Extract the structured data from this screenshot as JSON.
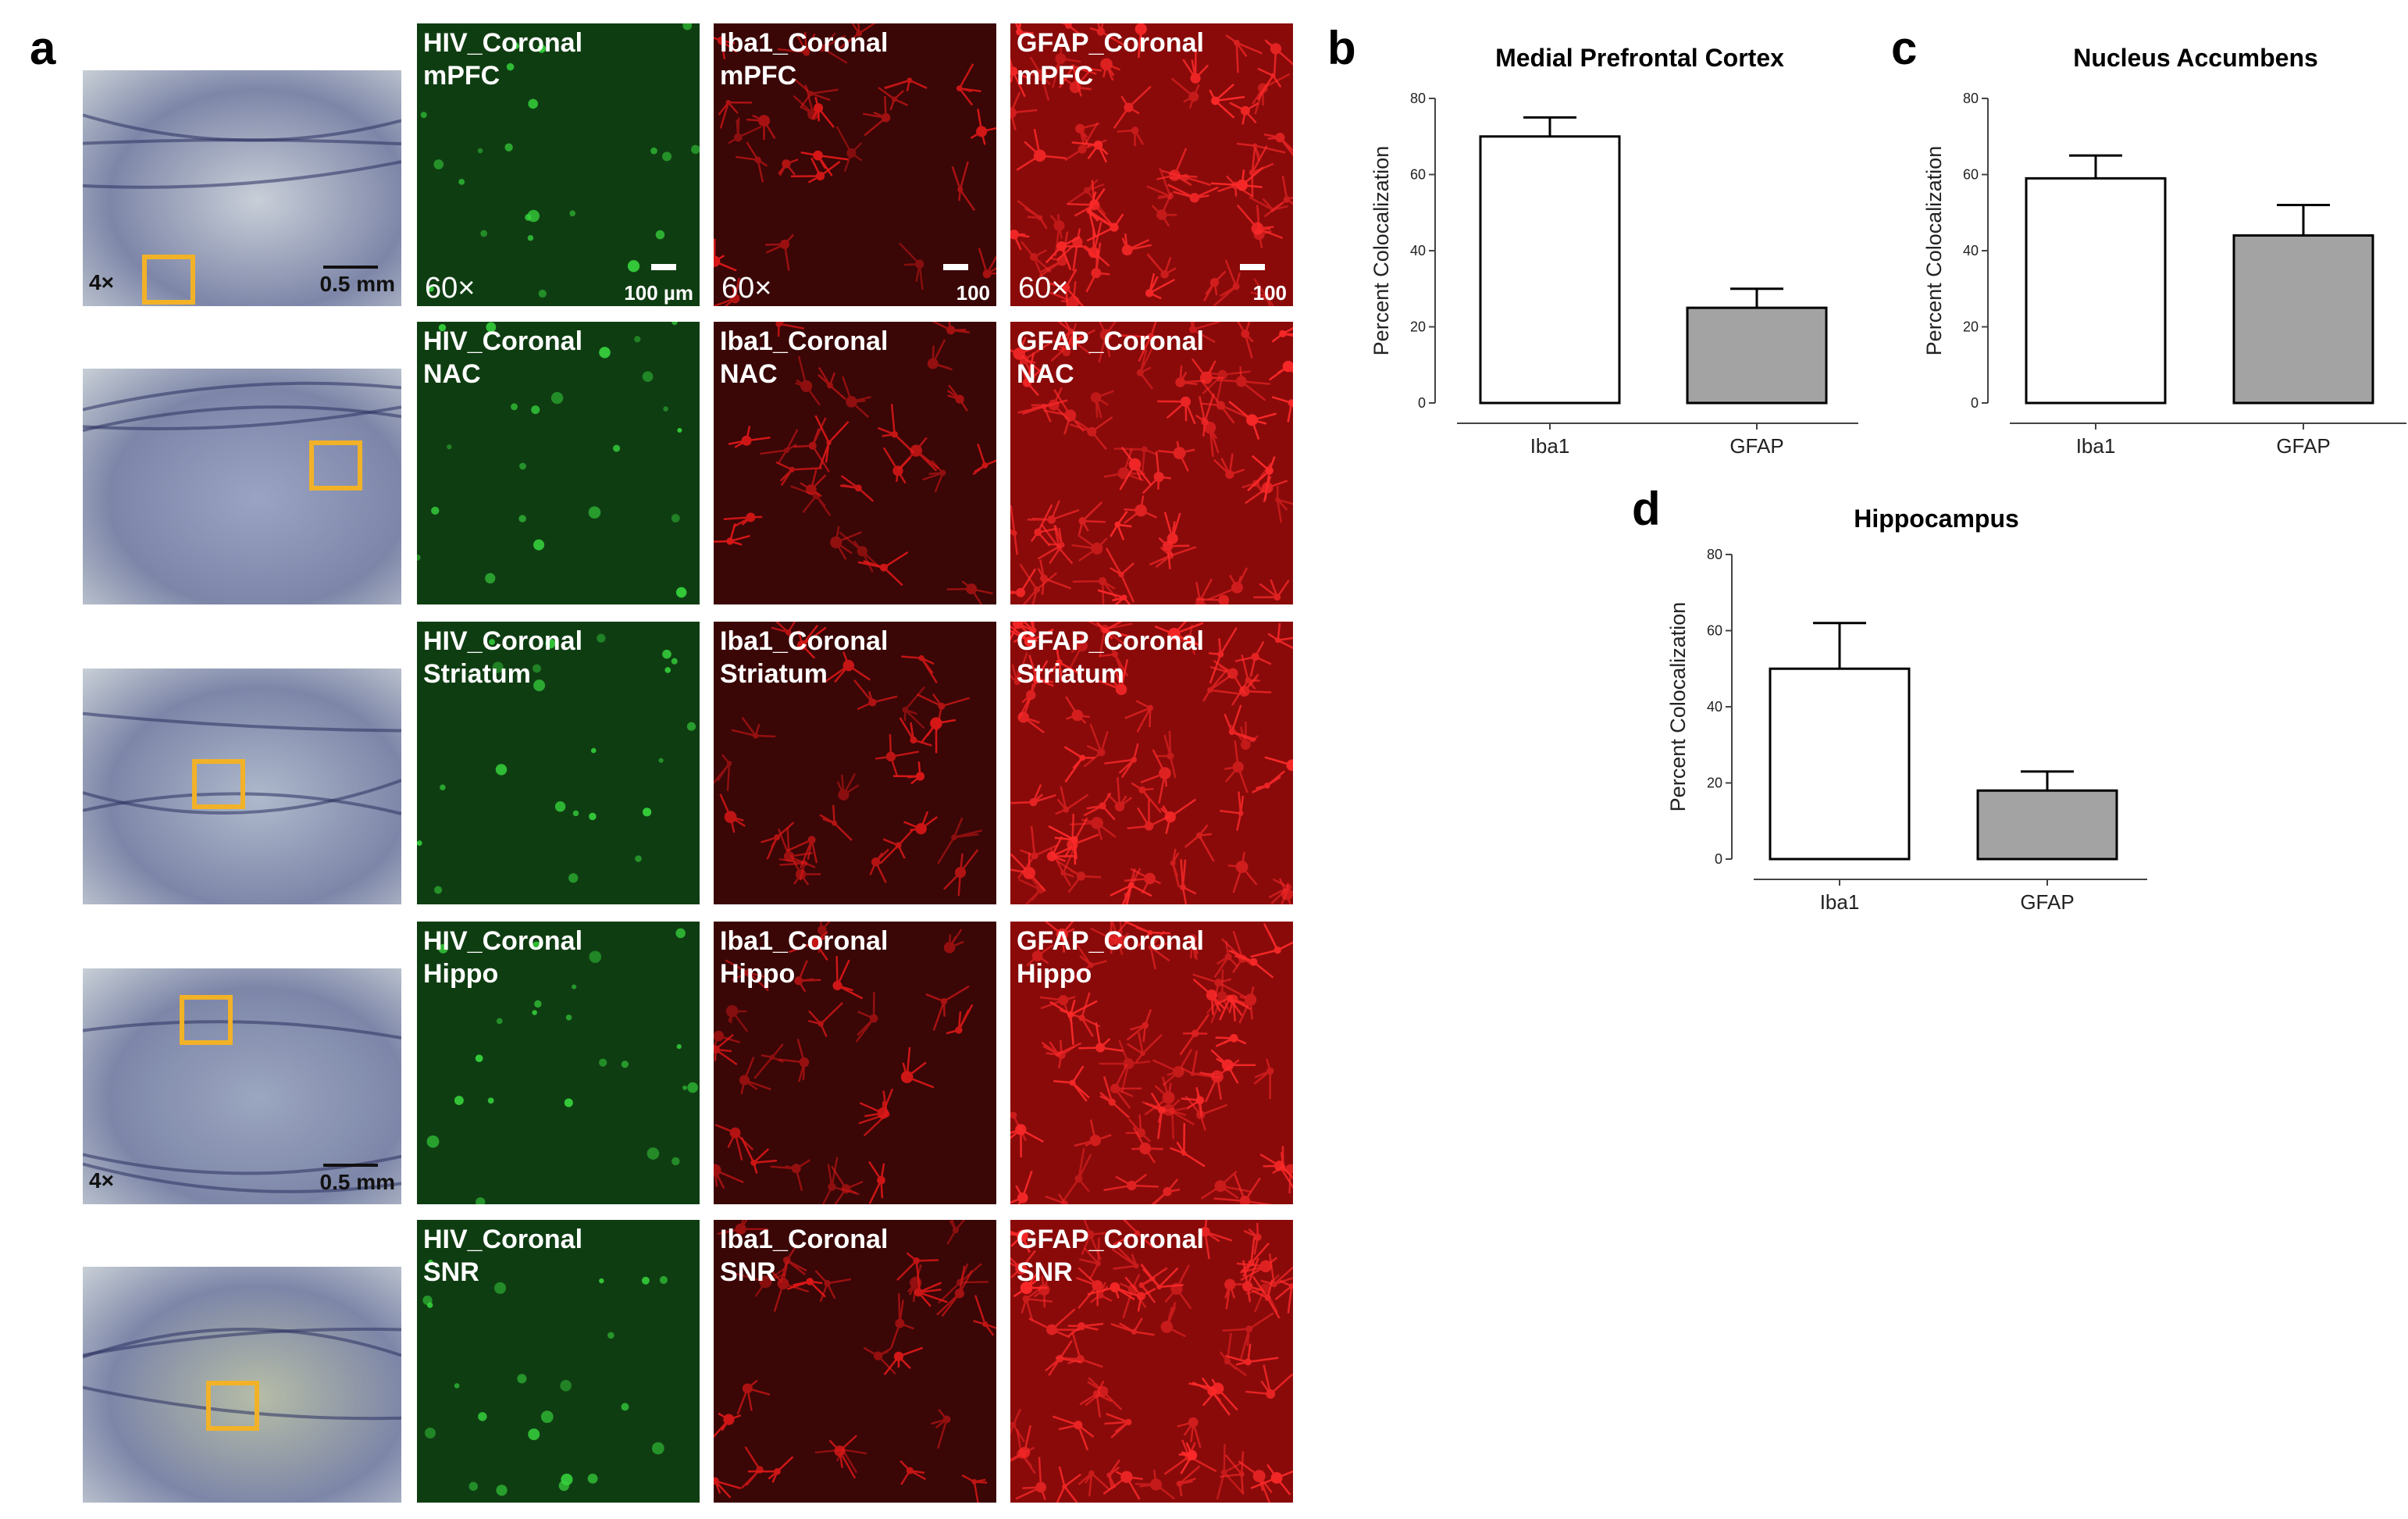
{
  "figure": {
    "panel_letters": {
      "a": "a",
      "b": "b",
      "c": "c",
      "d": "d"
    }
  },
  "histology": {
    "rows": [
      {
        "mag": "4×",
        "scale": "0.5 mm",
        "tint": "#c9cfd8"
      },
      {
        "mag": "",
        "scale": "",
        "tint": "#9aa3c4"
      },
      {
        "mag": "",
        "scale": "",
        "tint": "#aeb9cc"
      },
      {
        "mag": "4×",
        "scale": "0.5 mm",
        "tint": "#9ba6c0"
      },
      {
        "mag": "",
        "scale": "",
        "tint": "#b6bda7"
      }
    ],
    "box_color": "#f2b227"
  },
  "micrographs": {
    "rows": [
      {
        "region": "mPFC",
        "hiv": {
          "label1": "HIV_Coronal",
          "label2": "mPFC",
          "mag": "60×",
          "scale": "100 µm"
        },
        "iba": {
          "label1": "Iba1_Coronal",
          "label2": "mPFC",
          "mag": "60×",
          "scale": "100"
        },
        "gfap": {
          "label1": "GFAP_Coronal",
          "label2": "mPFC",
          "mag": "60×",
          "scale": "100"
        }
      },
      {
        "region": "NAC",
        "hiv": {
          "label1": "HIV_Coronal",
          "label2": "NAC",
          "mag": "",
          "scale": ""
        },
        "iba": {
          "label1": "Iba1_Coronal",
          "label2": "NAC",
          "mag": "",
          "scale": ""
        },
        "gfap": {
          "label1": "GFAP_Coronal",
          "label2": "NAC",
          "mag": "",
          "scale": ""
        }
      },
      {
        "region": "Striatum",
        "hiv": {
          "label1": "HIV_Coronal",
          "label2": "Striatum",
          "mag": "",
          "scale": ""
        },
        "iba": {
          "label1": "Iba1_Coronal",
          "label2": "Striatum",
          "mag": "",
          "scale": ""
        },
        "gfap": {
          "label1": "GFAP_Coronal",
          "label2": "Striatum",
          "mag": "",
          "scale": ""
        }
      },
      {
        "region": "Hippo",
        "hiv": {
          "label1": "HIV_Coronal",
          "label2": "Hippo",
          "mag": "",
          "scale": ""
        },
        "iba": {
          "label1": "Iba1_Coronal",
          "label2": "Hippo",
          "mag": "",
          "scale": ""
        },
        "gfap": {
          "label1": "GFAP_Coronal",
          "label2": "Hippo",
          "mag": "",
          "scale": ""
        }
      },
      {
        "region": "SNR",
        "hiv": {
          "label1": "HIV_Coronal",
          "label2": "SNR",
          "mag": "",
          "scale": ""
        },
        "iba": {
          "label1": "Iba1_Coronal",
          "label2": "SNR",
          "mag": "",
          "scale": ""
        },
        "gfap": {
          "label1": "GFAP_Coronal",
          "label2": "SNR",
          "mag": "",
          "scale": ""
        }
      }
    ],
    "colors": {
      "hiv": "#0f3d12",
      "iba": "#3a0606",
      "gfap": "#8a0a0a",
      "hiv_dot": "#36d23c",
      "iba_dot": "#e01818",
      "gfap_dot": "#ff2a2a"
    }
  },
  "chart_data": [
    {
      "type": "bar",
      "panel": "b",
      "title": "Medial  Prefrontal Cortex",
      "categories": [
        "Iba1",
        "GFAP"
      ],
      "values": [
        70,
        25
      ],
      "errors": [
        5,
        5
      ],
      "ylabel": "Percent Colocalization",
      "ylim": [
        0,
        80
      ],
      "yticks": [
        "0",
        "20",
        "40",
        "60",
        "80"
      ],
      "bar_colors": [
        "#ffffff",
        "#a3a3a3"
      ]
    },
    {
      "type": "bar",
      "panel": "c",
      "title": "Nucleus Accumbens",
      "categories": [
        "Iba1",
        "GFAP"
      ],
      "values": [
        59,
        44
      ],
      "errors": [
        6,
        8
      ],
      "ylabel": "Percent Colocalization",
      "ylim": [
        0,
        80
      ],
      "yticks": [
        "0",
        "20",
        "40",
        "60",
        "80"
      ],
      "bar_colors": [
        "#ffffff",
        "#a3a3a3"
      ]
    },
    {
      "type": "bar",
      "panel": "d",
      "title": "Hippocampus",
      "categories": [
        "Iba1",
        "GFAP"
      ],
      "values": [
        50,
        18
      ],
      "errors": [
        12,
        5
      ],
      "ylabel": "Percent Colocalization",
      "ylim": [
        0,
        80
      ],
      "yticks": [
        "0",
        "20",
        "40",
        "60",
        "80"
      ],
      "bar_colors": [
        "#ffffff",
        "#a3a3a3"
      ]
    }
  ]
}
